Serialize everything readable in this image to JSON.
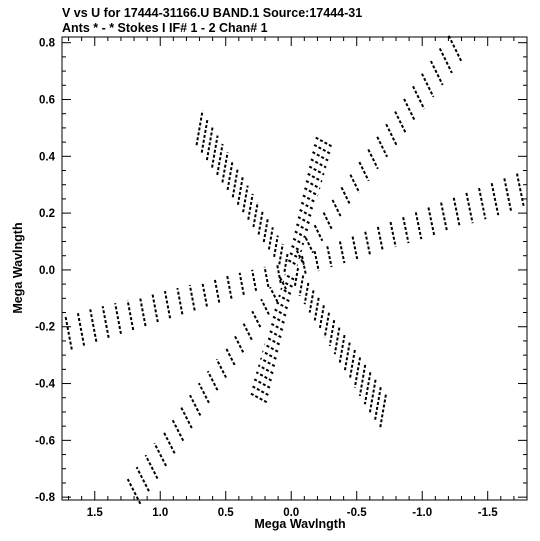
{
  "chart_data": {
    "type": "scatter",
    "title_line1": "V vs U for 17444-31166.U BAND.1   Source:17444-31",
    "title_line2": "Ants * - *     Stokes I  IF# 1 - 2  Chan# 1",
    "xlabel": "Mega Wavlngth",
    "ylabel": "Mega Wavlngth",
    "xlim": [
      1.75,
      -1.8
    ],
    "ylim": [
      -0.81,
      0.82
    ],
    "x_ticks": [
      "1.5",
      "1.0",
      "0.5",
      "0.0",
      "-0.5",
      "-1.0",
      "-1.5"
    ],
    "x_tick_values": [
      1.5,
      1.0,
      0.5,
      0.0,
      -0.5,
      -1.0,
      -1.5
    ],
    "y_ticks": [
      "0.8",
      "0.6",
      "0.4",
      "0.2",
      "0.0",
      "-0.2",
      "-0.4",
      "-0.6",
      "-0.8"
    ],
    "y_tick_values": [
      0.8,
      0.6,
      0.4,
      0.2,
      0.0,
      -0.2,
      -0.4,
      -0.6,
      -0.8
    ],
    "grid": false,
    "marker_color": "#000000",
    "description_tracks": [
      {
        "u0": 0.0,
        "v0": 0.0,
        "du": -1.25,
        "dv": 0.78
      },
      {
        "u0": 0.0,
        "v0": 0.0,
        "du": 1.2,
        "dv": -0.78
      },
      {
        "u0": 0.0,
        "v0": 0.0,
        "du": -1.75,
        "dv": 0.28
      },
      {
        "u0": 0.0,
        "v0": 0.0,
        "du": 1.7,
        "dv": -0.22
      },
      {
        "u0": 0.0,
        "v0": 0.0,
        "du": -0.25,
        "dv": 0.45
      },
      {
        "u0": 0.0,
        "v0": 0.0,
        "du": 0.25,
        "dv": -0.45
      },
      {
        "u0": 0.0,
        "v0": 0.0,
        "du": 0.7,
        "dv": 0.5
      },
      {
        "u0": 0.0,
        "v0": 0.0,
        "du": -0.7,
        "dv": -0.5
      }
    ]
  }
}
